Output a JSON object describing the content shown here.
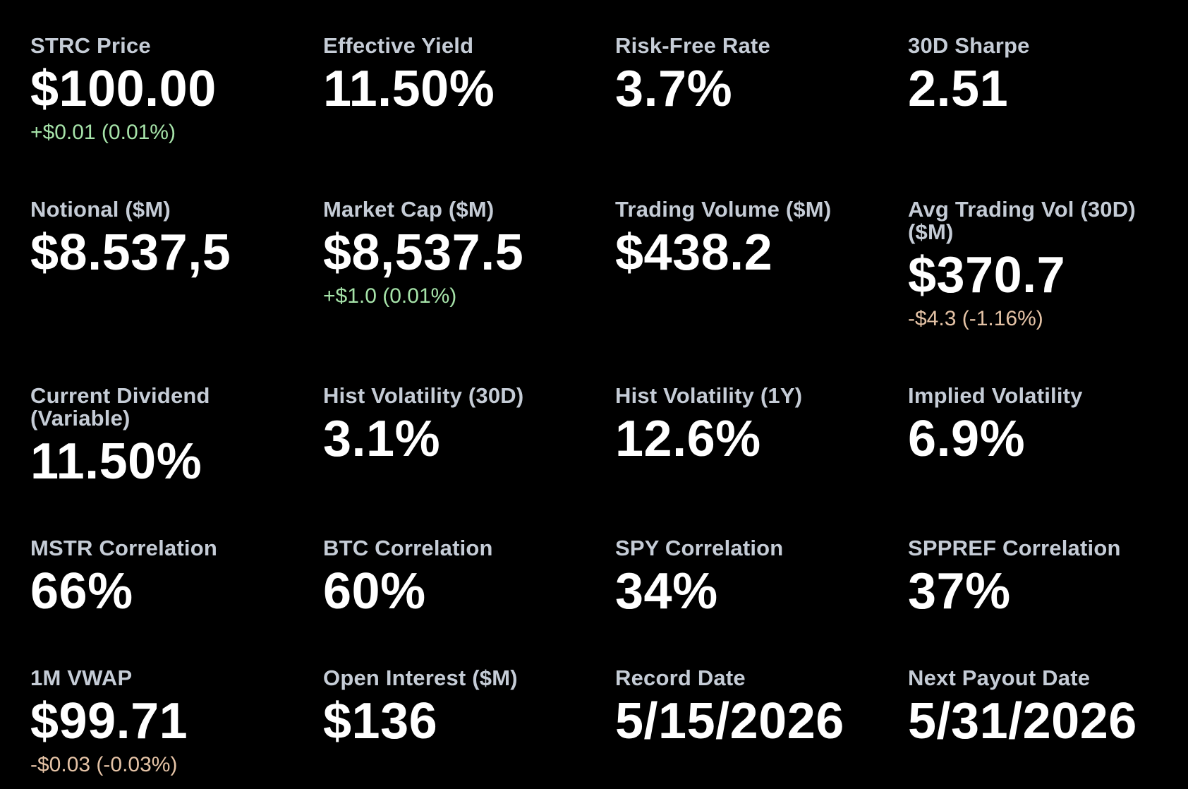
{
  "colors": {
    "background": "#000000",
    "label": "#c5ccd6",
    "value": "#ffffff",
    "positive": "#a6e3a9",
    "negative": "#e5c3a6"
  },
  "metrics": [
    {
      "label": "STRC Price",
      "value": "$100.00",
      "change": "+$0.01 (0.01%)"
    },
    {
      "label": "Effective Yield",
      "value": "11.50%"
    },
    {
      "label": "Risk-Free Rate",
      "value": "3.7%"
    },
    {
      "label": "30D Sharpe",
      "value": "2.51"
    },
    {
      "label": "Notional ($M)",
      "value": "$8.537,5"
    },
    {
      "label": "Market Cap ($M)",
      "value": "$8,537.5",
      "change": "+$1.0 (0.01%)"
    },
    {
      "label": "Trading Volume ($M)",
      "value": "$438.2"
    },
    {
      "label": "Avg Trading Vol (30D) ($M)",
      "value": "$370.7",
      "change": "-$4.3 (-1.16%)"
    },
    {
      "label": "Current Dividend (Variable)",
      "value": "11.50%"
    },
    {
      "label": "Hist Volatility (30D)",
      "value": "3.1%"
    },
    {
      "label": "Hist Volatility (1Y)",
      "value": "12.6%"
    },
    {
      "label": "Implied Volatility",
      "value": "6.9%"
    },
    {
      "label": "MSTR Correlation",
      "value": "66%"
    },
    {
      "label": "BTC Correlation",
      "value": "60%"
    },
    {
      "label": "SPY Correlation",
      "value": "34%"
    },
    {
      "label": "SPPREF Correlation",
      "value": "37%"
    },
    {
      "label": "1M VWAP",
      "value": "$99.71",
      "change": "-$0.03 (-0.03%)"
    },
    {
      "label": "Open Interest ($M)",
      "value": "$136"
    },
    {
      "label": "Record Date",
      "value": "5/15/2026"
    },
    {
      "label": "Next Payout Date",
      "value": "5/31/2026"
    }
  ]
}
